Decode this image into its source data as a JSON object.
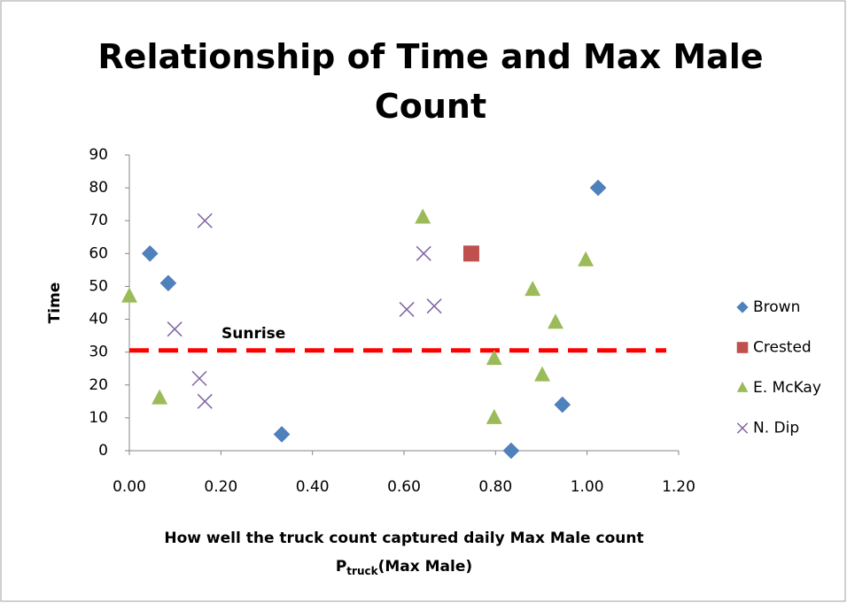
{
  "chart_data": {
    "type": "scatter",
    "title": "Relationship of Time and Max Male Count",
    "xlabel": "How well the truck count captured daily Max Male count",
    "xlabel_formula": {
      "base": "P",
      "subscript": "truck",
      "suffix": "(Max Male)"
    },
    "ylabel": "Time",
    "xlim": [
      0,
      1.2
    ],
    "xticks": [
      {
        "value": 0,
        "label": "0.00"
      },
      {
        "value": 0.2,
        "label": "0.20"
      },
      {
        "value": 0.4,
        "label": "0.40"
      },
      {
        "value": 0.6,
        "label": "0.60"
      },
      {
        "value": 0.8,
        "label": "0.80"
      },
      {
        "value": 1.0,
        "label": "1.00"
      },
      {
        "value": 1.2,
        "label": "1.20"
      }
    ],
    "ylim": [
      0,
      90
    ],
    "yticks": [
      0,
      10,
      20,
      30,
      40,
      50,
      60,
      70,
      80,
      90
    ],
    "grid": false,
    "legend": "right",
    "hline": {
      "value": 30.5,
      "label": "Sunrise",
      "color": "#ff0000"
    },
    "series": [
      {
        "name": "Brown",
        "color": "#4f81bd",
        "marker": "diamond",
        "x": [
          0.045,
          0.085,
          0.333,
          0.834,
          0.946,
          1.024
        ],
        "values": [
          60,
          51,
          5,
          0,
          14,
          80
        ]
      },
      {
        "name": "Crested",
        "color": "#c0504d",
        "marker": "square",
        "x": [
          0.747
        ],
        "values": [
          60
        ]
      },
      {
        "name": "E. McKay",
        "color": "#9bbb59",
        "marker": "triangle",
        "x": [
          0.0,
          0.066,
          0.641,
          0.797,
          0.797,
          0.881,
          0.902,
          0.931,
          0.997
        ],
        "values": [
          47,
          16,
          71,
          28,
          10,
          49,
          23,
          39,
          58
        ]
      },
      {
        "name": "N. Dip",
        "color": "#8064a2",
        "marker": "x",
        "x": [
          0.165,
          0.099,
          0.153,
          0.165,
          0.606,
          0.643,
          0.666
        ],
        "values": [
          70,
          37,
          22,
          15,
          43,
          60,
          44
        ]
      }
    ]
  }
}
